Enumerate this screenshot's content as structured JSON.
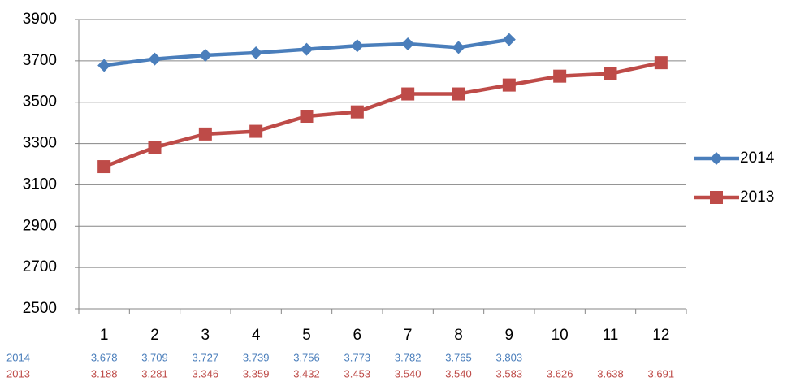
{
  "chart_data": {
    "type": "line",
    "categories": [
      "1",
      "2",
      "3",
      "4",
      "5",
      "6",
      "7",
      "8",
      "9",
      "10",
      "11",
      "12"
    ],
    "series": [
      {
        "name": "2014",
        "color": "#4a7ebb",
        "marker": "diamond",
        "values": [
          3678,
          3709,
          3727,
          3739,
          3756,
          3773,
          3782,
          3765,
          3803,
          null,
          null,
          null
        ],
        "value_labels": [
          "3.678",
          "3.709",
          "3.727",
          "3.739",
          "3.756",
          "3.773",
          "3.782",
          "3.765",
          "3.803",
          null,
          null,
          null
        ]
      },
      {
        "name": "2013",
        "color": "#be4b48",
        "marker": "square",
        "values": [
          3188,
          3281,
          3346,
          3359,
          3432,
          3453,
          3540,
          3540,
          3583,
          3626,
          3638,
          3691
        ],
        "value_labels": [
          "3.188",
          "3.281",
          "3.346",
          "3.359",
          "3.432",
          "3.453",
          "3.540",
          "3.540",
          "3.583",
          "3.626",
          "3.638",
          "3.691"
        ]
      }
    ],
    "ylim": [
      2500,
      3900
    ],
    "yticks": [
      2500,
      2700,
      2900,
      3100,
      3300,
      3500,
      3700,
      3900
    ],
    "grid": true,
    "legend": "right",
    "data_table": true
  }
}
